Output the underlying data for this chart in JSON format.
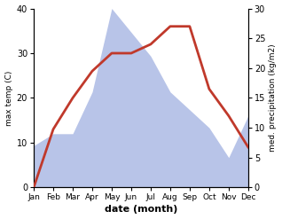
{
  "months": [
    "Jan",
    "Feb",
    "Mar",
    "Apr",
    "May",
    "Jun",
    "Jul",
    "Aug",
    "Sep",
    "Oct",
    "Nov",
    "Dec"
  ],
  "max_temp": [
    0,
    13,
    20,
    26,
    30,
    30,
    32,
    36,
    36,
    22,
    16,
    9
  ],
  "precipitation_right": [
    7,
    9,
    9,
    16,
    30,
    26,
    22,
    16,
    13,
    10,
    5,
    12
  ],
  "temp_ylim": [
    0,
    40
  ],
  "precip_ylim": [
    0,
    30
  ],
  "temp_yticks": [
    0,
    10,
    20,
    30,
    40
  ],
  "precip_yticks": [
    0,
    5,
    10,
    15,
    20,
    25,
    30
  ],
  "temp_color": "#c0392b",
  "precip_fill_color": "#b8c4e8",
  "xlabel": "date (month)",
  "ylabel_left": "max temp (C)",
  "ylabel_right": "med. precipitation (kg/m2)",
  "background_color": "#ffffff",
  "temp_linewidth": 2.0
}
